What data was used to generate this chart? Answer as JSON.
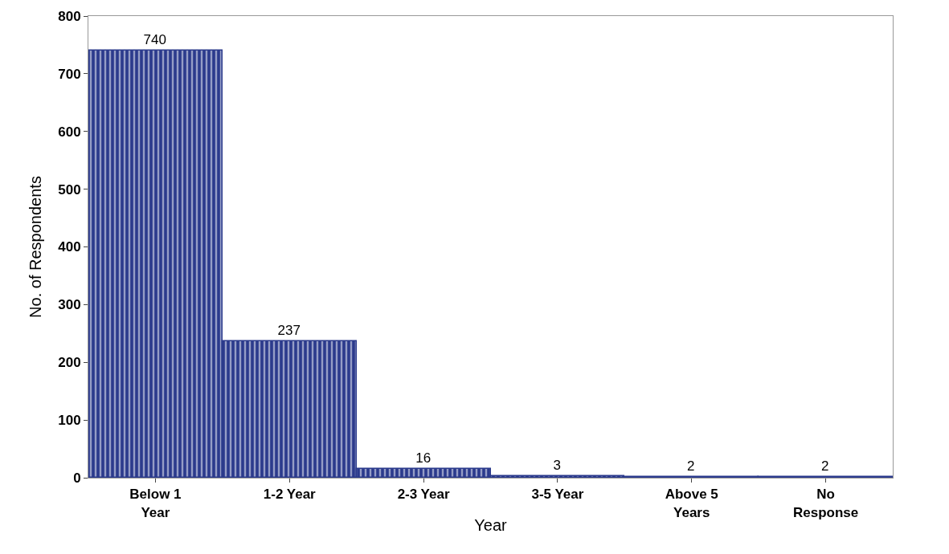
{
  "chart_data": {
    "type": "bar",
    "xlabel": "Year",
    "ylabel": "No. of Respondents",
    "categories": [
      "Below 1\nYear",
      "1-2 Year",
      "2-3 Year",
      "3-5 Year",
      "Above 5\nYears",
      "No\nResponse"
    ],
    "values": [
      740,
      237,
      16,
      3,
      2,
      2
    ],
    "color": "#2b3a8c",
    "ylim": [
      0,
      800
    ],
    "yticks": [
      0,
      100,
      200,
      300,
      400,
      500,
      600,
      700,
      800
    ],
    "data_labels": true
  }
}
